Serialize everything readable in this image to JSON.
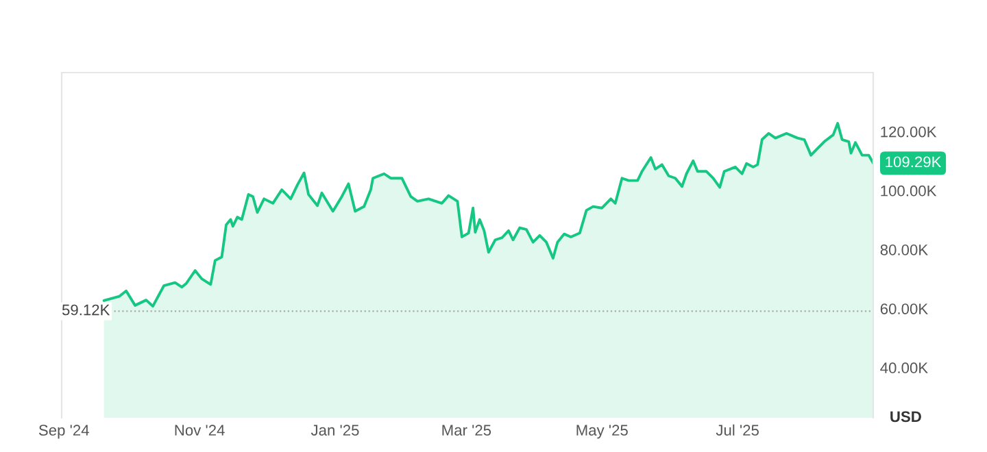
{
  "chart_data": {
    "type": "area",
    "ylabel": "USD",
    "x": [
      "2024-09-19",
      "2024-09-26",
      "2024-09-29",
      "2024-10-03",
      "2024-10-08",
      "2024-10-11",
      "2024-10-16",
      "2024-10-21",
      "2024-10-24",
      "2024-10-26",
      "2024-10-30",
      "2024-11-02",
      "2024-11-06",
      "2024-11-08",
      "2024-11-11",
      "2024-11-13",
      "2024-11-15",
      "2024-11-16",
      "2024-11-18",
      "2024-11-20",
      "2024-11-23",
      "2024-11-25",
      "2024-11-27",
      "2024-11-30",
      "2024-12-04",
      "2024-12-08",
      "2024-12-12",
      "2024-12-15",
      "2024-12-18",
      "2024-12-20",
      "2024-12-24",
      "2024-12-26",
      "2024-12-31",
      "2025-01-04",
      "2025-01-07",
      "2025-01-10",
      "2025-01-14",
      "2025-01-17",
      "2025-01-18",
      "2025-01-23",
      "2025-01-26",
      "2025-01-31",
      "2025-02-04",
      "2025-02-07",
      "2025-02-12",
      "2025-02-18",
      "2025-02-21",
      "2025-02-25",
      "2025-02-27",
      "2025-03-02",
      "2025-03-04",
      "2025-03-05",
      "2025-03-07",
      "2025-03-09",
      "2025-03-11",
      "2025-03-14",
      "2025-03-17",
      "2025-03-20",
      "2025-03-22",
      "2025-03-25",
      "2025-03-28",
      "2025-03-31",
      "2025-04-03",
      "2025-04-06",
      "2025-04-09",
      "2025-04-11",
      "2025-04-14",
      "2025-04-17",
      "2025-04-21",
      "2025-04-24",
      "2025-04-27",
      "2025-05-01",
      "2025-05-05",
      "2025-05-07",
      "2025-05-10",
      "2025-05-13",
      "2025-05-17",
      "2025-05-19",
      "2025-05-23",
      "2025-05-25",
      "2025-05-28",
      "2025-05-31",
      "2025-06-03",
      "2025-06-06",
      "2025-06-08",
      "2025-06-11",
      "2025-06-13",
      "2025-06-17",
      "2025-06-20",
      "2025-06-23",
      "2025-06-25",
      "2025-06-30",
      "2025-07-03",
      "2025-07-05",
      "2025-07-08",
      "2025-07-10",
      "2025-07-12",
      "2025-07-15",
      "2025-07-18",
      "2025-07-23",
      "2025-07-28",
      "2025-07-31",
      "2025-08-03",
      "2025-08-06",
      "2025-08-09",
      "2025-08-13",
      "2025-08-15",
      "2025-08-17",
      "2025-08-20",
      "2025-08-21",
      "2025-08-23",
      "2025-08-26",
      "2025-08-29",
      "2025-08-31"
    ],
    "series": [
      {
        "color": "#16c784",
        "values": [
          62.7,
          64.2,
          66.0,
          61.1,
          62.9,
          60.8,
          67.8,
          68.8,
          67.3,
          68.5,
          72.9,
          70.1,
          68.2,
          76.3,
          77.5,
          88.4,
          90.2,
          87.9,
          91.0,
          90.2,
          98.7,
          98.0,
          92.6,
          97.2,
          95.7,
          100.3,
          97.2,
          101.9,
          106.0,
          98.7,
          94.9,
          99.2,
          93.0,
          98.0,
          102.3,
          93.0,
          94.6,
          100.3,
          104.2,
          105.7,
          104.2,
          104.2,
          98.0,
          96.4,
          97.2,
          95.7,
          98.3,
          96.4,
          84.3,
          85.6,
          94.1,
          85.9,
          90.2,
          86.4,
          79.1,
          83.3,
          84.0,
          86.4,
          83.3,
          87.4,
          86.8,
          82.5,
          84.8,
          82.5,
          77.1,
          82.5,
          85.3,
          84.3,
          85.6,
          93.3,
          94.6,
          94.1,
          97.2,
          95.7,
          104.2,
          103.4,
          103.4,
          106.5,
          111.2,
          107.3,
          108.8,
          105.0,
          104.2,
          101.4,
          105.7,
          110.1,
          106.5,
          106.5,
          104.2,
          101.1,
          106.5,
          108.0,
          105.7,
          109.2,
          108.0,
          108.8,
          117.3,
          119.4,
          117.8,
          119.4,
          117.8,
          117.3,
          112.0,
          114.3,
          116.6,
          118.9,
          122.8,
          117.3,
          116.6,
          112.7,
          116.3,
          112.0,
          112.0,
          109.29
        ]
      }
    ],
    "xlim": [
      "2024-08-31",
      "2025-08-31"
    ],
    "xticks": [
      {
        "value": "2024-09-01",
        "label": "Sep '24"
      },
      {
        "value": "2024-11-01",
        "label": "Nov '24"
      },
      {
        "value": "2025-01-01",
        "label": "Jan '25"
      },
      {
        "value": "2025-03-01",
        "label": "Mar '25"
      },
      {
        "value": "2025-05-01",
        "label": "May '25"
      },
      {
        "value": "2025-07-01",
        "label": "Jul '25"
      }
    ],
    "ylim": [
      23,
      140
    ],
    "yticks": [
      {
        "value": 40,
        "label": "40.00K"
      },
      {
        "value": 60,
        "label": "60.00K"
      },
      {
        "value": 80,
        "label": "80.00K"
      },
      {
        "value": 100,
        "label": "100.00K"
      },
      {
        "value": 120,
        "label": "120.00K"
      }
    ],
    "ref_lines": [
      {
        "axis": "y",
        "value": 59.12,
        "label": "59.12K",
        "color": "#aaaaaa",
        "line_style": "dotted"
      }
    ],
    "annotations": [
      {
        "text": "109.29K",
        "x": "2025-08-31",
        "y": 109.29
      }
    ],
    "grid": false,
    "legend": false
  }
}
